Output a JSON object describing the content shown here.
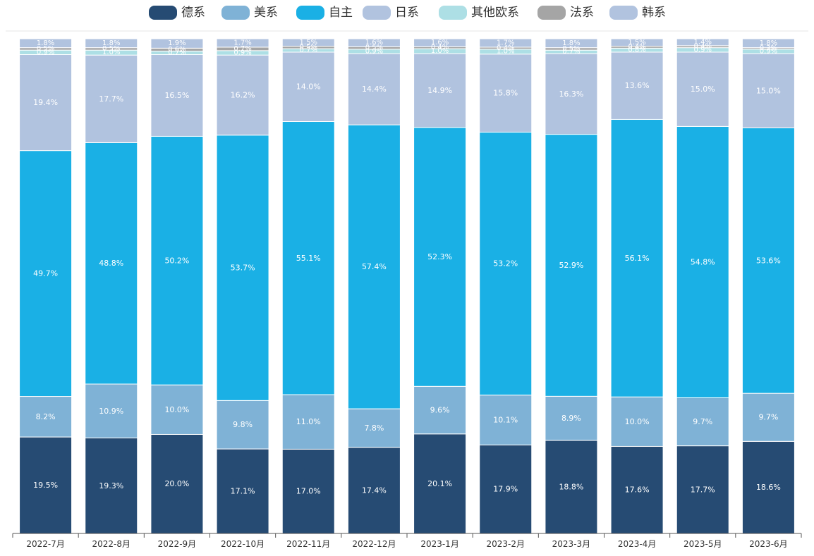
{
  "chart_data": {
    "type": "bar",
    "stacked": true,
    "normalized": true,
    "title": "",
    "xlabel": "",
    "ylabel": "",
    "ylim": [
      0,
      100
    ],
    "grid": false,
    "legend_position": "top",
    "value_format": "percent_one_decimal",
    "categories": [
      "2022-7月",
      "2022-8月",
      "2022-9月",
      "2022-10月",
      "2022-11月",
      "2022-12月",
      "2023-1月",
      "2023-2月",
      "2023-3月",
      "2023-4月",
      "2023-5月",
      "2023-6月"
    ],
    "series": [
      {
        "name": "德系",
        "color": "#264b73",
        "label_color": "#ffffff",
        "values": [
          19.5,
          19.3,
          20.0,
          17.1,
          17.0,
          17.4,
          20.1,
          17.9,
          18.8,
          17.6,
          17.7,
          18.6
        ]
      },
      {
        "name": "美系",
        "color": "#7fb2d6",
        "label_color": "#ffffff",
        "values": [
          8.2,
          10.9,
          10.0,
          9.8,
          11.0,
          7.8,
          9.6,
          10.1,
          8.9,
          10.0,
          9.7,
          9.7
        ]
      },
      {
        "name": "自主",
        "color": "#1ab0e5",
        "label_color": "#ffffff",
        "values": [
          49.7,
          48.8,
          50.2,
          53.7,
          55.1,
          57.4,
          52.3,
          53.2,
          52.9,
          56.1,
          54.8,
          53.6
        ]
      },
      {
        "name": "日系",
        "color": "#b1c3df",
        "label_color": "#ffffff",
        "values": [
          19.4,
          17.7,
          16.5,
          16.2,
          14.0,
          14.4,
          14.9,
          15.8,
          16.3,
          13.6,
          15.0,
          15.0
        ]
      },
      {
        "name": "其他欧系",
        "color": "#addfe5",
        "label_color": "#ffffff",
        "values": [
          0.9,
          1.0,
          0.7,
          0.9,
          0.7,
          0.9,
          1.0,
          1.0,
          0.7,
          0.8,
          0.9,
          0.9
        ]
      },
      {
        "name": "法系",
        "color": "#a5a5a5",
        "label_color": "#ffffff",
        "values": [
          0.5,
          0.5,
          0.6,
          0.7,
          0.5,
          0.5,
          0.4,
          0.4,
          0.5,
          0.4,
          0.4,
          0.3
        ]
      },
      {
        "name": "韩系",
        "color": "#b1c3df",
        "label_color": "#ffffff",
        "values": [
          1.8,
          1.8,
          1.9,
          1.7,
          1.5,
          1.6,
          1.6,
          1.7,
          1.8,
          1.5,
          1.4,
          1.8
        ]
      }
    ]
  }
}
